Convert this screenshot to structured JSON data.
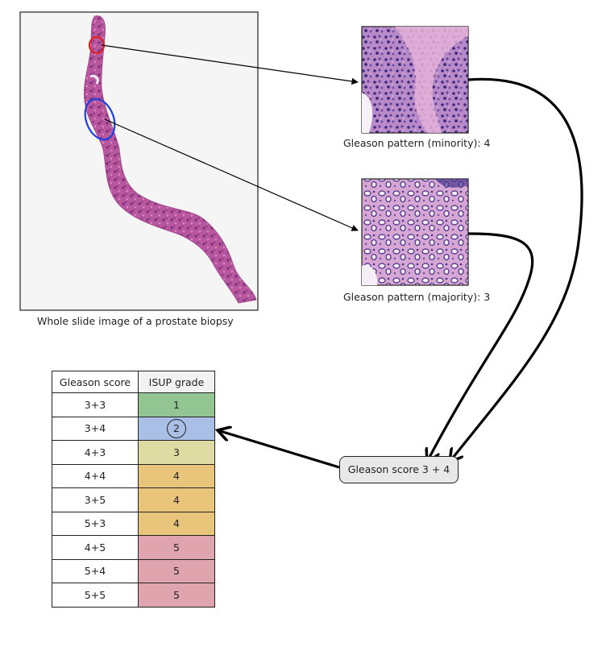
{
  "slide": {
    "caption": "Whole slide image of a prostate biopsy"
  },
  "patches": {
    "minority": {
      "caption": "Gleason pattern (minority): 4",
      "highlight_color": "#e02020"
    },
    "majority": {
      "caption": "Gleason pattern (majority): 3",
      "highlight_color": "#1f3fe0"
    }
  },
  "result": {
    "label": "Gleason score 3 + 4",
    "highlighted_grade": "2"
  },
  "table": {
    "headers": [
      "Gleason score",
      "ISUP grade"
    ],
    "rows": [
      {
        "score": "3+3",
        "grade": "1",
        "color": "#93c592"
      },
      {
        "score": "3+4",
        "grade": "2",
        "color": "#aabfe6"
      },
      {
        "score": "4+3",
        "grade": "3",
        "color": "#dedba3"
      },
      {
        "score": "4+4",
        "grade": "4",
        "color": "#e8c57a"
      },
      {
        "score": "3+5",
        "grade": "4",
        "color": "#e8c57a"
      },
      {
        "score": "5+3",
        "grade": "4",
        "color": "#e8c57a"
      },
      {
        "score": "4+5",
        "grade": "5",
        "color": "#dfa4ae"
      },
      {
        "score": "5+4",
        "grade": "5",
        "color": "#dfa4ae"
      },
      {
        "score": "5+5",
        "grade": "5",
        "color": "#dfa4ae"
      }
    ]
  }
}
